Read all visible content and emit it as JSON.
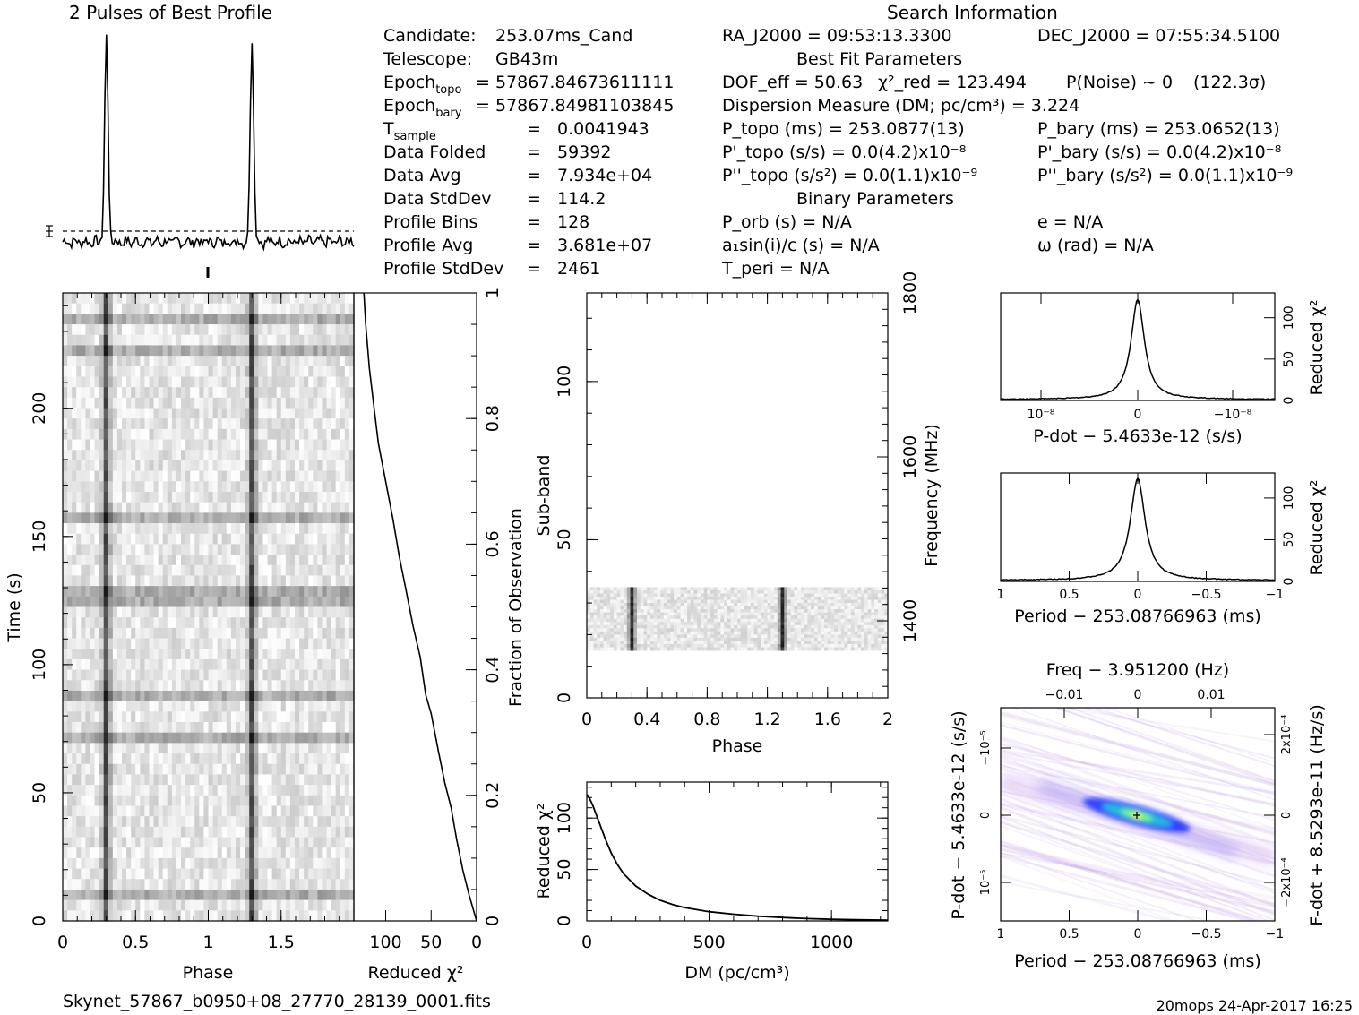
{
  "profile_title": "2 Pulses of Best Profile",
  "search_title": "Search Information",
  "col1": [
    {
      "label": "Candidate:",
      "value": "253.07ms_Cand"
    },
    {
      "label": "Telescope:",
      "value": "GB43m"
    },
    {
      "label": "Epoch_topo",
      "value": "= 57867.84673611111"
    },
    {
      "label": "Epoch_bary",
      "value": "= 57867.84981103845"
    },
    {
      "label": "T_sample",
      "value": "0.0041943"
    },
    {
      "label": "Data Folded",
      "value": "59392"
    },
    {
      "label": "Data Avg",
      "value": "7.934e+04"
    },
    {
      "label": "Data StdDev",
      "value": "114.2"
    },
    {
      "label": "Profile Bins",
      "value": "128"
    },
    {
      "label": "Profile Avg",
      "value": "3.681e+07"
    },
    {
      "label": "Profile StdDev",
      "value": "2461"
    }
  ],
  "col2": {
    "ra": "RA_J2000 = 09:53:13.3300",
    "dec": "DEC_J2000 = 07:55:34.5100",
    "best_fit_header": "Best Fit Parameters",
    "dof": "DOF_eff = 50.63",
    "chi2": "χ²_red = 123.494",
    "pnoise": "P(Noise) ~ 0",
    "sigma": "(122.3σ)",
    "dm": "Dispersion Measure (DM; pc/cm³) = 3.224",
    "ptopo": "P_topo (ms) = 253.0877(13)",
    "pbary": "P_bary (ms) = 253.0652(13)",
    "pdtopo": "P'_topo (s/s) = 0.0(4.2)x10⁻⁸",
    "pdbary": "P'_bary (s/s) = 0.0(4.2)x10⁻⁸",
    "pddtopo": "P''_topo (s/s²) = 0.0(1.1)x10⁻⁹",
    "pddbary": "P''_bary (s/s²) = 0.0(1.1)x10⁻⁹",
    "binary_header": "Binary Parameters",
    "porb": "P_orb (s) = N/A",
    "ecc": "e = N/A",
    "a1": "a₁sin(i)/c (s) = N/A",
    "omega": "ω (rad) = N/A",
    "tperi": "T_peri = N/A"
  },
  "footer": {
    "filename": "Skynet_57867_b0950+08_27770_28139_0001.fits",
    "stamp": "20mops 24-Apr-2017 16:25"
  },
  "chart_data": [
    {
      "name": "profile",
      "type": "line",
      "title": "2 Pulses of Best Profile",
      "x_range": [
        0,
        2
      ],
      "pulse_phases": [
        0.3,
        1.3
      ],
      "baseline_dashed": true
    },
    {
      "name": "time-phase",
      "type": "heatmap",
      "xlabel": "Phase",
      "ylabel": "Time (s)",
      "xlim": [
        0,
        2
      ],
      "ylim": [
        0,
        245
      ],
      "x_ticks": [
        "0",
        "0.5",
        "1",
        "1.5"
      ],
      "y_ticks": [
        "0",
        "50",
        "100",
        "150",
        "200"
      ],
      "pulse_phases": [
        0.3,
        1.3
      ]
    },
    {
      "name": "time-chi2",
      "type": "line",
      "xlabel": "Reduced χ²",
      "ylabel_right": "Fraction of Observation",
      "x_ticks": [
        "100",
        "50",
        "0"
      ],
      "y_ticks_right": [
        "0",
        "0.2",
        "0.4",
        "0.6",
        "0.8",
        "1"
      ],
      "x": [
        0,
        8,
        15,
        22,
        28,
        35,
        42,
        50,
        56,
        62,
        70,
        78,
        85,
        92,
        100,
        108,
        113,
        118,
        122,
        124
      ],
      "y": [
        0,
        0.04,
        0.08,
        0.13,
        0.18,
        0.22,
        0.27,
        0.33,
        0.36,
        0.42,
        0.47,
        0.53,
        0.58,
        0.64,
        0.7,
        0.76,
        0.82,
        0.88,
        0.95,
        1.0
      ]
    },
    {
      "name": "subband-phase",
      "type": "heatmap",
      "xlabel": "Phase",
      "ylabel": "Sub-band",
      "ylabel_right": "Frequency (MHz)",
      "xlim": [
        0,
        2
      ],
      "ylim": [
        0,
        128
      ],
      "x_ticks": [
        "0",
        "0.4",
        "0.8",
        "1.2",
        "1.6",
        "2"
      ],
      "y_ticks": [
        "0",
        "50",
        "100"
      ],
      "y_ticks_right": [
        "1400",
        "1600",
        "1800"
      ],
      "band_range": [
        15,
        35
      ],
      "pulse_phases": [
        0.3,
        1.3
      ]
    },
    {
      "name": "dm-chi2",
      "type": "line",
      "xlabel": "DM (pc/cm³)",
      "ylabel": "Reduced χ²",
      "x_ticks": [
        "0",
        "500",
        "1000"
      ],
      "y_ticks": [
        "0",
        "50",
        "100"
      ],
      "xlim": [
        0,
        1230
      ],
      "ylim": [
        0,
        135
      ],
      "x": [
        0,
        10,
        25,
        50,
        75,
        100,
        125,
        150,
        200,
        250,
        300,
        350,
        400,
        500,
        600,
        700,
        800,
        900,
        1000,
        1100,
        1230
      ],
      "y": [
        123,
        120,
        112,
        96,
        80,
        66,
        55,
        46,
        34,
        26,
        20,
        16,
        13,
        9,
        6.5,
        4.6,
        3.3,
        2.3,
        1.6,
        1.1,
        0.7
      ]
    },
    {
      "name": "pdot-chi2",
      "type": "line",
      "xlabel": "P-dot − 5.4633e-12 (s/s)",
      "ylabel_right": "Reduced χ²",
      "x_ticks": [
        "10⁻⁸",
        "0",
        "−10⁻⁸"
      ],
      "y_ticks_right": [
        "0",
        "50",
        "100"
      ],
      "peak": 123.5
    },
    {
      "name": "period-chi2",
      "type": "line",
      "xlabel": "Period − 253.08766963 (ms)",
      "ylabel_right": "Reduced χ²",
      "x_ticks": [
        "1",
        "0.5",
        "0",
        "−0.5",
        "−1"
      ],
      "y_ticks_right": [
        "0",
        "50",
        "100"
      ],
      "xlim": [
        1,
        -1
      ],
      "peak": 123.5
    },
    {
      "name": "period-pdot-plane",
      "type": "heatmap",
      "title": "Freq − 3.951200 (Hz)",
      "xlabel": "Period − 253.08766963 (ms)",
      "ylabel": "P-dot − 5.4633e-12 (s/s)",
      "ylabel_right": "F-dot + 8.5293e-11 (Hz/s)",
      "x_ticks": [
        "1",
        "0.5",
        "0",
        "−0.5",
        "−1"
      ],
      "top_ticks": [
        "−0.01",
        "0",
        "0.01"
      ],
      "y_ticks": [
        "10⁻⁵",
        "0",
        "−10⁻⁵"
      ],
      "y_ticks_right": [
        "−2x10⁻⁴",
        "0",
        "2x10⁻⁴"
      ]
    }
  ]
}
